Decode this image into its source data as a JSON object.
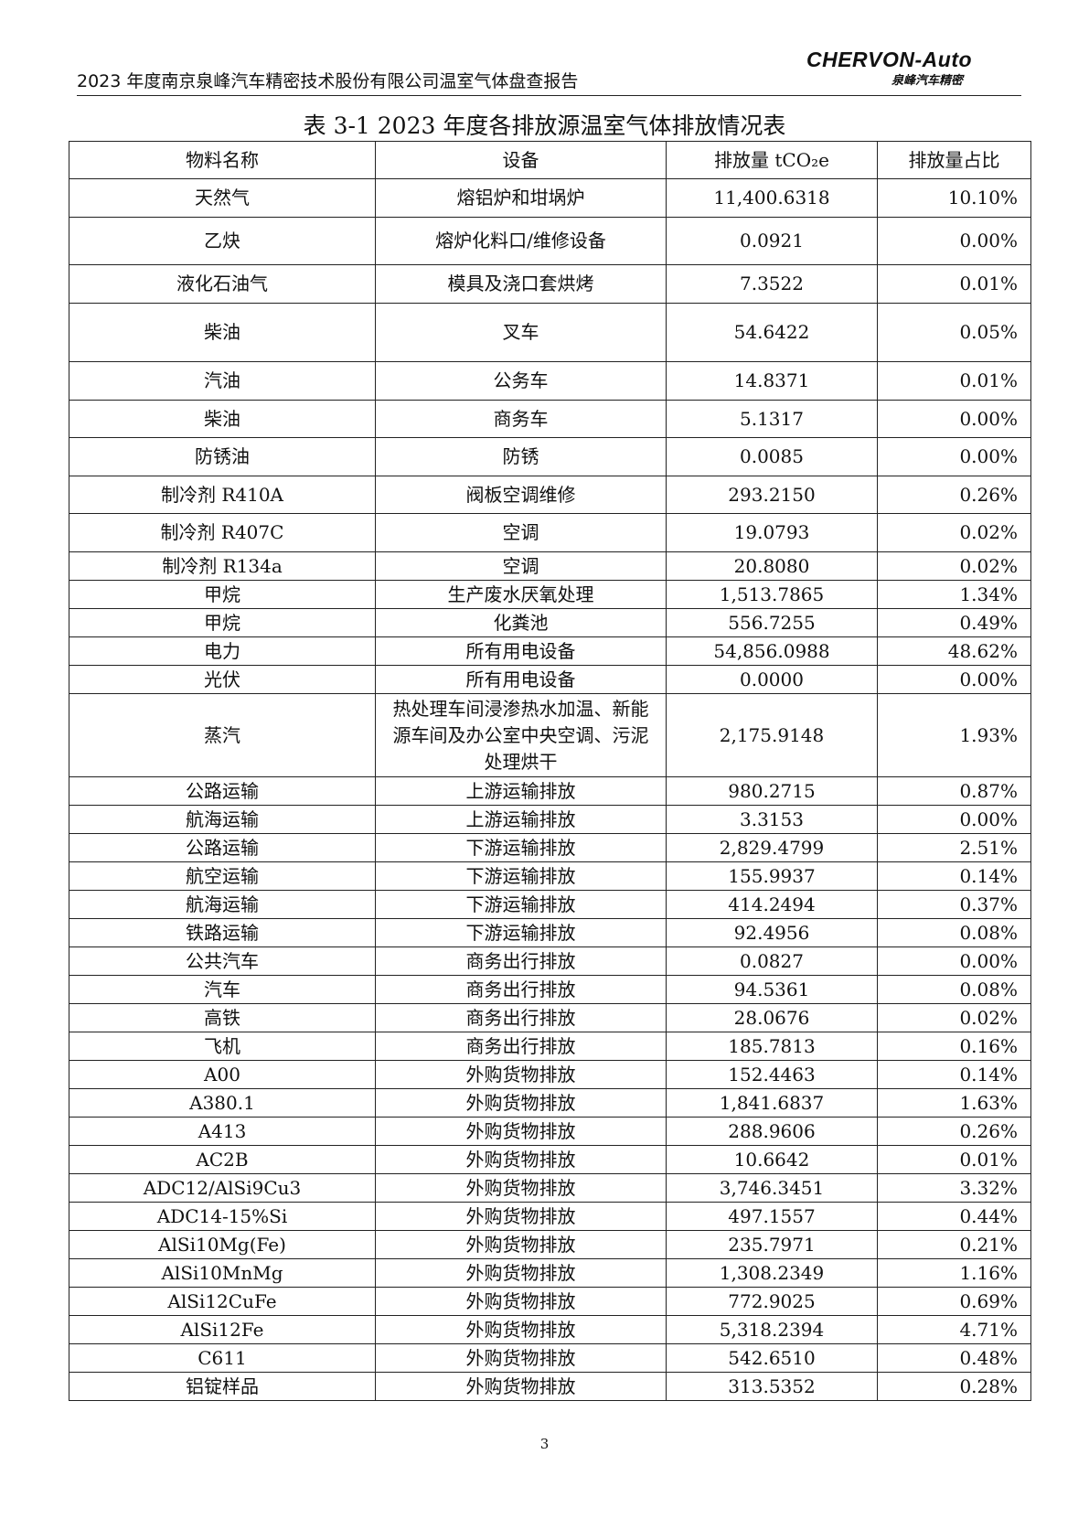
{
  "header": {
    "report_title": "2023 年度南京泉峰汽车精密技术股份有限公司温室气体盘查报告",
    "logo": {
      "brand": "CHERVON-Auto",
      "subtitle": "泉峰汽车精密"
    }
  },
  "table": {
    "caption": "表 3-1 2023 年度各排放源温室气体排放情况表",
    "columns": [
      "物料名称",
      "设备",
      "排放量 tCO₂e",
      "排放量占比"
    ],
    "rows": [
      [
        "天然气",
        "熔铝炉和坩埚炉",
        "11,400.6318",
        "10.10%"
      ],
      [
        "乙炔",
        "熔炉化料口/维修设备",
        "0.0921",
        "0.00%"
      ],
      [
        "液化石油气",
        "模具及浇口套烘烤",
        "7.3522",
        "0.01%"
      ],
      [
        "柴油",
        "叉车",
        "54.6422",
        "0.05%"
      ],
      [
        "汽油",
        "公务车",
        "14.8371",
        "0.01%"
      ],
      [
        "柴油",
        "商务车",
        "5.1317",
        "0.00%"
      ],
      [
        "防锈油",
        "防锈",
        "0.0085",
        "0.00%"
      ],
      [
        "制冷剂 R410A",
        "阀板空调维修",
        "293.2150",
        "0.26%"
      ],
      [
        "制冷剂 R407C",
        "空调",
        "19.0793",
        "0.02%"
      ],
      [
        "制冷剂 R134a",
        "空调",
        "20.8080",
        "0.02%"
      ],
      [
        "甲烷",
        "生产废水厌氧处理",
        "1,513.7865",
        "1.34%"
      ],
      [
        "甲烷",
        "化粪池",
        "556.7255",
        "0.49%"
      ],
      [
        "电力",
        "所有用电设备",
        "54,856.0988",
        "48.62%"
      ],
      [
        "光伏",
        "所有用电设备",
        "0.0000",
        "0.00%"
      ],
      [
        "蒸汽",
        "热处理车间浸渗热水加温、新能源车间及办公室中央空调、污泥处理烘干",
        "2,175.9148",
        "1.93%"
      ],
      [
        "公路运输",
        "上游运输排放",
        "980.2715",
        "0.87%"
      ],
      [
        "航海运输",
        "上游运输排放",
        "3.3153",
        "0.00%"
      ],
      [
        "公路运输",
        "下游运输排放",
        "2,829.4799",
        "2.51%"
      ],
      [
        "航空运输",
        "下游运输排放",
        "155.9937",
        "0.14%"
      ],
      [
        "航海运输",
        "下游运输排放",
        "414.2494",
        "0.37%"
      ],
      [
        "铁路运输",
        "下游运输排放",
        "92.4956",
        "0.08%"
      ],
      [
        "公共汽车",
        "商务出行排放",
        "0.0827",
        "0.00%"
      ],
      [
        "汽车",
        "商务出行排放",
        "94.5361",
        "0.08%"
      ],
      [
        "高铁",
        "商务出行排放",
        "28.0676",
        "0.02%"
      ],
      [
        "飞机",
        "商务出行排放",
        "185.7813",
        "0.16%"
      ],
      [
        "A00",
        "外购货物排放",
        "152.4463",
        "0.14%"
      ],
      [
        "A380.1",
        "外购货物排放",
        "1,841.6837",
        "1.63%"
      ],
      [
        "A413",
        "外购货物排放",
        "288.9606",
        "0.26%"
      ],
      [
        "AC2B",
        "外购货物排放",
        "10.6642",
        "0.01%"
      ],
      [
        "ADC12/AlSi9Cu3",
        "外购货物排放",
        "3,746.3451",
        "3.32%"
      ],
      [
        "ADC14-15%Si",
        "外购货物排放",
        "497.1557",
        "0.44%"
      ],
      [
        "AlSi10Mg(Fe)",
        "外购货物排放",
        "235.7971",
        "0.21%"
      ],
      [
        "AlSi10MnMg",
        "外购货物排放",
        "1,308.2349",
        "1.16%"
      ],
      [
        "AlSi12CuFe",
        "外购货物排放",
        "772.9025",
        "0.69%"
      ],
      [
        "AlSi12Fe",
        "外购货物排放",
        "5,318.2394",
        "4.71%"
      ],
      [
        "C611",
        "外购货物排放",
        "542.6510",
        "0.48%"
      ],
      [
        "铝锭样品",
        "外购货物排放",
        "313.5352",
        "0.28%"
      ]
    ]
  },
  "footer": {
    "page_number": "3"
  }
}
